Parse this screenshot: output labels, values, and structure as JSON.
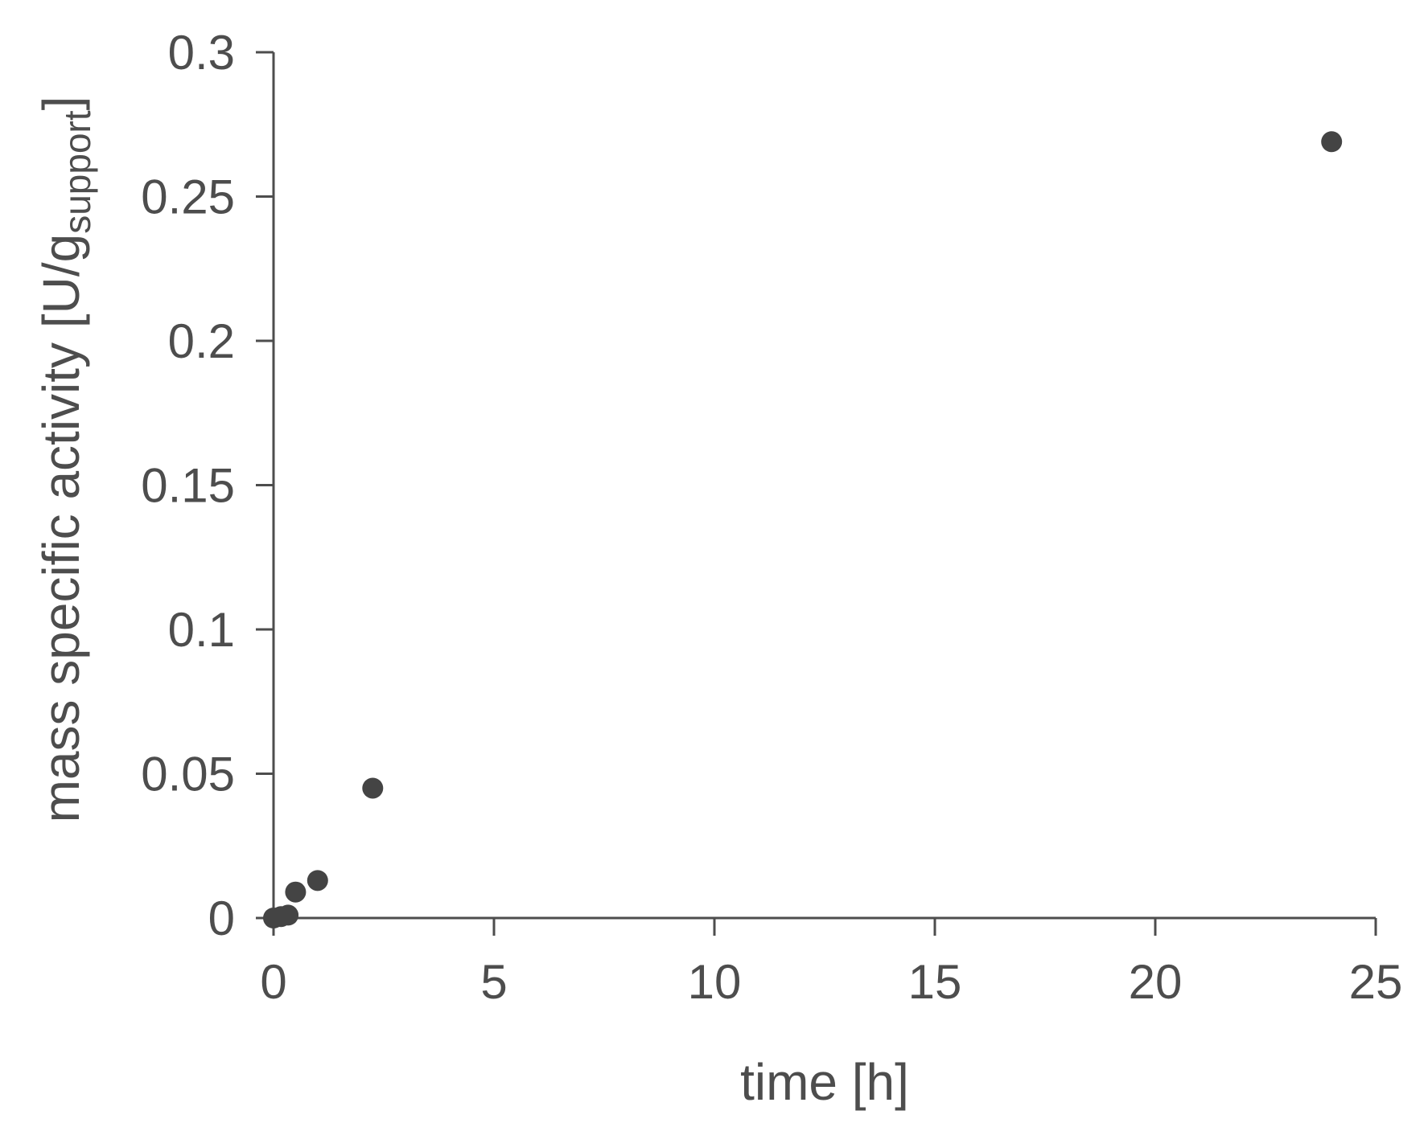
{
  "chart_data": {
    "type": "scatter",
    "title": "",
    "xlabel": "time [h]",
    "ylabel": {
      "main": "mass specific activity [U/g",
      "subscript": "support",
      "suffix": "]"
    },
    "x": [
      0,
      0.17,
      0.33,
      0.5,
      1,
      2.25,
      24
    ],
    "y": [
      0,
      0.0005,
      0.001,
      0.009,
      0.013,
      0.045,
      0.269
    ],
    "xlim": [
      0,
      25
    ],
    "ylim": [
      0,
      0.3
    ],
    "xticks": [
      0,
      5,
      10,
      15,
      20,
      25
    ],
    "xtick_labels": [
      "0",
      "5",
      "10",
      "15",
      "20",
      "25"
    ],
    "yticks": [
      0,
      0.05,
      0.1,
      0.15,
      0.2,
      0.25,
      0.3
    ],
    "ytick_labels": [
      "0",
      "0.05",
      "0.1",
      "0.15",
      "0.2",
      "0.25",
      "0.3"
    ],
    "grid": false,
    "legend": "none",
    "marker_color": "#444444",
    "axis_color": "#4d4d4d"
  }
}
